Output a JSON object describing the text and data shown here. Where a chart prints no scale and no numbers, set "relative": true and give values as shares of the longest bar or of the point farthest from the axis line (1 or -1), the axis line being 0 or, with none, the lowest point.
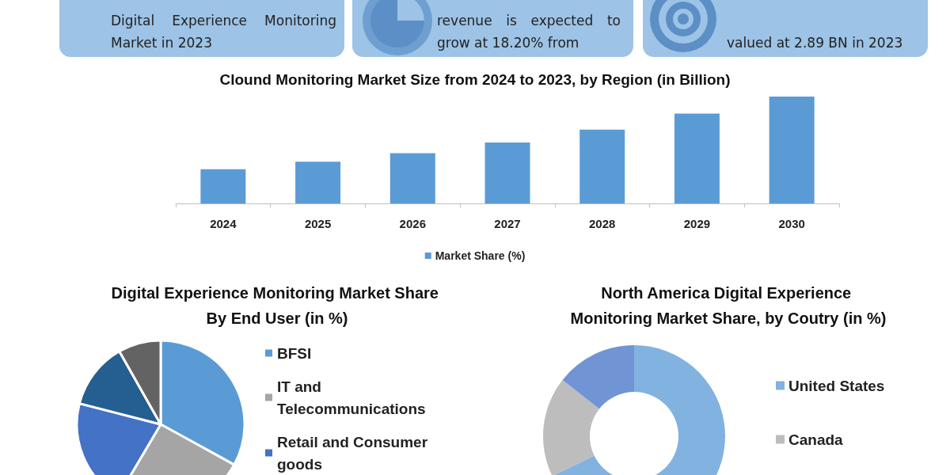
{
  "chart_data": [
    {
      "type": "other",
      "annotations": [
        "Digital Experience Monitoring Market in 2023",
        "revenue is expected to grow at 18.20% from",
        "valued at 2.89 BN in 2023"
      ]
    },
    {
      "type": "bar",
      "title": "Clound Monitoring Market Size from 2024 to 2023, by Region (in Billion)",
      "categories": [
        "2024",
        "2025",
        "2026",
        "2027",
        "2028",
        "2029",
        "2030"
      ],
      "relative": true,
      "legend": "bottom",
      "series": [
        {
          "name": "Market Share (%)",
          "color": "#5b9bd5",
          "values": [
            0.32,
            0.39,
            0.47,
            0.57,
            0.69,
            0.84,
            1
          ]
        }
      ]
    },
    {
      "type": "pie",
      "title": "Digital Experience Monitoring Market Share By End User (in %)",
      "legend": "right",
      "categories": [
        "BFSI",
        "IT and Telecommunications",
        "Retail and Consumer goods",
        null,
        null
      ],
      "values": [
        33,
        25.5,
        20.5,
        12.8,
        8.2
      ],
      "colors": [
        "#5b9bd5",
        "#a5a5a5",
        "#4472c4",
        "#255e91",
        "#636363"
      ]
    },
    {
      "type": "donut",
      "title": "North America Digital Experience Monitoring Market Share, by Coutry (in %)",
      "legend": "right",
      "categories": [
        "United States",
        "Canada",
        null
      ],
      "values": [
        67.8,
        17.8,
        14.4
      ],
      "colors": [
        "#82b2e0",
        "#bdbdbd",
        "#7094d4"
      ]
    }
  ]
}
